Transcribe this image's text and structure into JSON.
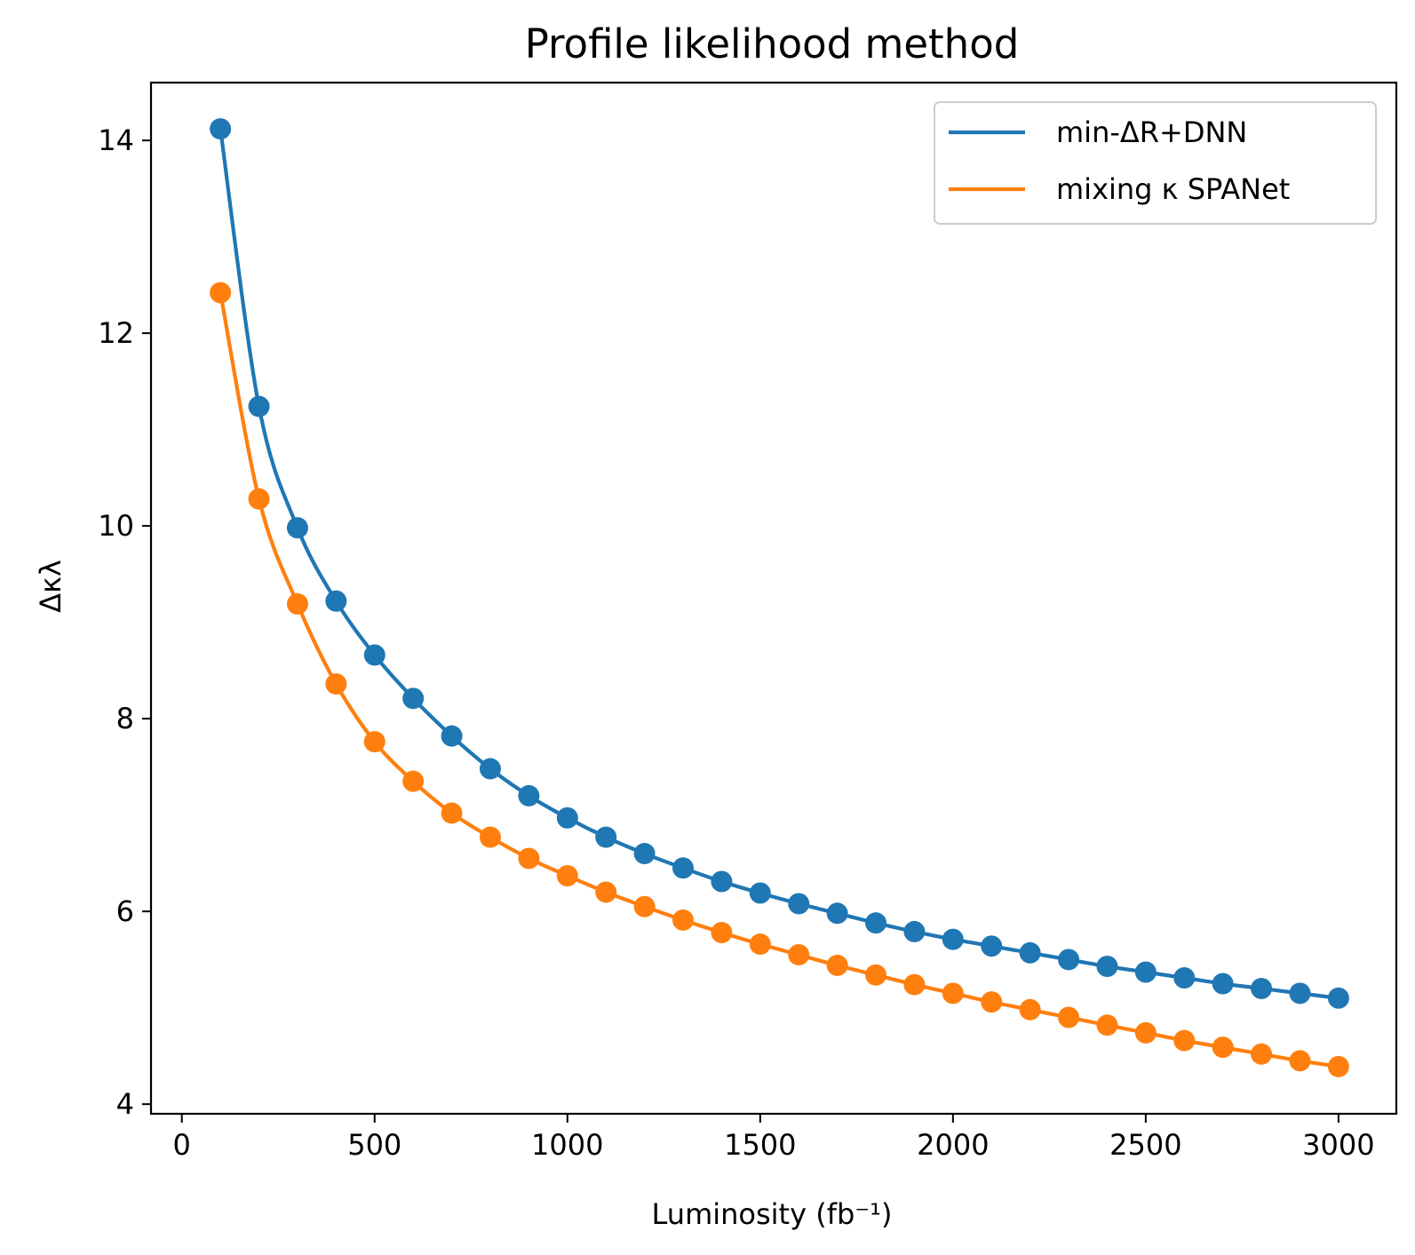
{
  "chart_data": {
    "type": "line",
    "title": "Profile likelihood method",
    "xlabel": "Luminosity (fb⁻¹)",
    "ylabel": "Δκλ",
    "xlim": [
      -80,
      3150
    ],
    "ylim": [
      3.9,
      14.6
    ],
    "xticks": [
      0,
      500,
      1000,
      1500,
      2000,
      2500,
      3000
    ],
    "yticks": [
      4,
      6,
      8,
      10,
      12,
      14
    ],
    "grid": false,
    "legend_position": "top-right",
    "x": [
      100,
      200,
      300,
      400,
      500,
      600,
      700,
      800,
      900,
      1000,
      1100,
      1200,
      1300,
      1400,
      1500,
      1600,
      1700,
      1800,
      1900,
      2000,
      2100,
      2200,
      2300,
      2400,
      2500,
      2600,
      2700,
      2800,
      2900,
      3000
    ],
    "series": [
      {
        "name": "min-ΔR+DNN",
        "color": "#1f77b4",
        "values": [
          14.12,
          11.24,
          9.98,
          9.22,
          8.66,
          8.21,
          7.82,
          7.48,
          7.2,
          6.97,
          6.77,
          6.6,
          6.45,
          6.31,
          6.19,
          6.08,
          5.98,
          5.88,
          5.79,
          5.71,
          5.64,
          5.57,
          5.5,
          5.43,
          5.37,
          5.31,
          5.25,
          5.2,
          5.15,
          5.1
        ]
      },
      {
        "name": "mixing κ SPANet",
        "color": "#ff7f0e",
        "values": [
          12.42,
          10.28,
          9.19,
          8.36,
          7.76,
          7.35,
          7.02,
          6.77,
          6.55,
          6.37,
          6.2,
          6.05,
          5.91,
          5.78,
          5.66,
          5.55,
          5.44,
          5.34,
          5.24,
          5.15,
          5.06,
          4.98,
          4.9,
          4.82,
          4.74,
          4.66,
          4.59,
          4.52,
          4.45,
          4.39
        ]
      }
    ]
  }
}
